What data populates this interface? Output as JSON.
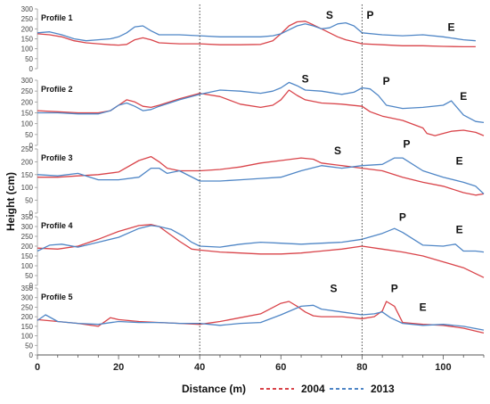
{
  "chart_data": {
    "type": "line",
    "xlabel": "Distance (m)",
    "ylabel": "Height (cm)",
    "xlim": [
      0,
      110
    ],
    "xticks": [
      0,
      20,
      40,
      60,
      80,
      100
    ],
    "vlines": [
      40,
      80
    ],
    "grid": false,
    "legend_placement": "bottom",
    "series_names": [
      "2004",
      "2013"
    ],
    "colors": {
      "2004": "#d9444a",
      "2013": "#4f86c6"
    },
    "panels": [
      {
        "label": "Profile 1",
        "ylim": [
          0,
          300
        ],
        "yticks": [
          0,
          50,
          100,
          150,
          200,
          250,
          300
        ],
        "series": [
          {
            "name": "2004",
            "x": [
              0,
              3,
              6,
              9,
              12,
              15,
              18,
              20,
              22,
              24,
              26,
              28,
              30,
              35,
              40,
              45,
              50,
              55,
              58,
              60,
              62,
              64,
              66,
              68,
              70,
              72,
              74,
              76,
              78,
              80,
              85,
              90,
              95,
              100,
              105,
              108
            ],
            "values": [
              175,
              170,
              160,
              140,
              130,
              125,
              120,
              118,
              122,
              145,
              155,
              145,
              130,
              125,
              125,
              120,
              120,
              122,
              140,
              175,
              215,
              235,
              238,
              220,
              200,
              180,
              160,
              145,
              135,
              125,
              120,
              115,
              115,
              112,
              110,
              110
            ]
          },
          {
            "name": "2013",
            "x": [
              0,
              3,
              6,
              9,
              12,
              15,
              18,
              20,
              22,
              24,
              26,
              28,
              30,
              35,
              40,
              45,
              50,
              55,
              58,
              60,
              62,
              64,
              66,
              68,
              70,
              72,
              74,
              76,
              78,
              80,
              85,
              90,
              95,
              100,
              105,
              108
            ],
            "values": [
              180,
              185,
              170,
              150,
              140,
              145,
              150,
              160,
              180,
              210,
              215,
              190,
              170,
              170,
              165,
              160,
              160,
              160,
              165,
              175,
              195,
              215,
              225,
              215,
              200,
              205,
              225,
              230,
              215,
              180,
              170,
              165,
              170,
              160,
              145,
              140
            ]
          }
        ],
        "annotations": [
          {
            "text": "S",
            "x": 72,
            "y": 250
          },
          {
            "text": "P",
            "x": 82,
            "y": 250
          },
          {
            "text": "E",
            "x": 102,
            "y": 190
          }
        ]
      },
      {
        "label": "Profile 2",
        "ylim": [
          0,
          300
        ],
        "yticks": [
          0,
          50,
          100,
          150,
          200,
          250,
          300
        ],
        "series": [
          {
            "name": "2004",
            "x": [
              0,
              5,
              10,
              15,
              18,
              20,
              22,
              24,
              26,
              28,
              30,
              35,
              40,
              45,
              50,
              55,
              58,
              60,
              62,
              64,
              66,
              70,
              75,
              80,
              82,
              85,
              90,
              95,
              96,
              98,
              100,
              102,
              105,
              108,
              110
            ],
            "values": [
              160,
              155,
              150,
              150,
              160,
              185,
              210,
              200,
              180,
              175,
              185,
              215,
              240,
              225,
              190,
              175,
              185,
              210,
              255,
              230,
              210,
              195,
              190,
              180,
              155,
              135,
              115,
              80,
              55,
              45,
              55,
              65,
              70,
              60,
              45
            ]
          },
          {
            "name": "2013",
            "x": [
              0,
              5,
              10,
              15,
              18,
              20,
              22,
              24,
              26,
              28,
              30,
              35,
              40,
              45,
              50,
              55,
              58,
              60,
              62,
              64,
              66,
              70,
              75,
              78,
              80,
              82,
              84,
              86,
              90,
              95,
              100,
              102,
              105,
              108,
              110
            ],
            "values": [
              150,
              150,
              145,
              145,
              160,
              185,
              195,
              180,
              160,
              165,
              180,
              210,
              235,
              255,
              250,
              240,
              250,
              265,
              290,
              275,
              255,
              250,
              235,
              245,
              265,
              260,
              230,
              185,
              170,
              175,
              185,
              205,
              140,
              110,
              105
            ]
          }
        ],
        "annotations": [
          {
            "text": "S",
            "x": 66,
            "y": 290
          },
          {
            "text": "P",
            "x": 86,
            "y": 280
          },
          {
            "text": "E",
            "x": 105,
            "y": 210
          }
        ]
      },
      {
        "label": "Profile 3",
        "ylim": [
          0,
          250
        ],
        "yticks": [
          0,
          50,
          100,
          150,
          200,
          250
        ],
        "series": [
          {
            "name": "2004",
            "x": [
              0,
              5,
              10,
              15,
              20,
              25,
              28,
              30,
              32,
              35,
              40,
              45,
              50,
              55,
              60,
              65,
              68,
              70,
              75,
              80,
              85,
              90,
              95,
              100,
              105,
              108,
              110
            ],
            "values": [
              140,
              140,
              145,
              150,
              160,
              205,
              220,
              200,
              175,
              165,
              165,
              170,
              180,
              195,
              205,
              215,
              210,
              195,
              185,
              175,
              165,
              140,
              120,
              105,
              80,
              70,
              75
            ]
          },
          {
            "name": "2013",
            "x": [
              0,
              5,
              10,
              15,
              20,
              25,
              28,
              30,
              32,
              35,
              40,
              45,
              50,
              55,
              60,
              65,
              70,
              75,
              80,
              85,
              88,
              90,
              95,
              100,
              105,
              108,
              110
            ],
            "values": [
              150,
              145,
              155,
              130,
              130,
              140,
              175,
              175,
              155,
              165,
              125,
              125,
              130,
              135,
              140,
              165,
              185,
              175,
              185,
              190,
              215,
              215,
              165,
              140,
              120,
              105,
              75
            ]
          }
        ],
        "annotations": [
          {
            "text": "S",
            "x": 74,
            "y": 230
          },
          {
            "text": "P",
            "x": 91,
            "y": 255
          },
          {
            "text": "E",
            "x": 104,
            "y": 190
          }
        ]
      },
      {
        "label": "Profile 4",
        "ylim": [
          0,
          350
        ],
        "yticks": [
          0,
          50,
          100,
          150,
          200,
          250,
          300,
          350
        ],
        "series": [
          {
            "name": "2004",
            "x": [
              0,
              5,
              10,
              15,
              20,
              25,
              28,
              30,
              32,
              35,
              38,
              40,
              45,
              50,
              55,
              60,
              65,
              70,
              75,
              80,
              85,
              90,
              95,
              100,
              105,
              108,
              110
            ],
            "values": [
              190,
              185,
              200,
              235,
              275,
              305,
              310,
              300,
              270,
              225,
              185,
              180,
              170,
              165,
              160,
              160,
              165,
              175,
              185,
              200,
              185,
              170,
              150,
              120,
              90,
              60,
              40
            ]
          },
          {
            "name": "2013",
            "x": [
              0,
              3,
              6,
              10,
              15,
              20,
              25,
              28,
              30,
              33,
              36,
              38,
              40,
              45,
              50,
              55,
              60,
              65,
              70,
              75,
              80,
              85,
              88,
              90,
              95,
              100,
              103,
              105,
              108,
              110
            ],
            "values": [
              175,
              205,
              210,
              195,
              220,
              245,
              290,
              305,
              300,
              285,
              250,
              220,
              200,
              195,
              210,
              220,
              215,
              210,
              215,
              220,
              235,
              265,
              290,
              270,
              205,
              200,
              210,
              175,
              175,
              170
            ]
          }
        ],
        "annotations": [
          {
            "text": "P",
            "x": 90,
            "y": 330
          },
          {
            "text": "E",
            "x": 104,
            "y": 265
          }
        ]
      },
      {
        "label": "Profile 5",
        "ylim": [
          0,
          350
        ],
        "yticks": [
          0,
          50,
          100,
          150,
          200,
          250,
          300,
          350
        ],
        "series": [
          {
            "name": "2004",
            "x": [
              0,
              5,
              10,
              15,
              18,
              20,
              25,
              30,
              35,
              40,
              45,
              50,
              55,
              60,
              62,
              64,
              66,
              68,
              70,
              75,
              80,
              83,
              85,
              86,
              88,
              90,
              95,
              100,
              105,
              110
            ],
            "values": [
              185,
              175,
              165,
              150,
              195,
              185,
              175,
              170,
              165,
              160,
              175,
              195,
              215,
              270,
              280,
              255,
              225,
              205,
              200,
              200,
              190,
              200,
              230,
              280,
              255,
              170,
              160,
              155,
              140,
              115
            ]
          },
          {
            "name": "2013",
            "x": [
              0,
              2,
              5,
              10,
              15,
              20,
              25,
              30,
              35,
              40,
              45,
              50,
              55,
              60,
              65,
              68,
              70,
              75,
              80,
              83,
              85,
              87,
              90,
              95,
              100,
              105,
              110
            ],
            "values": [
              180,
              210,
              175,
              165,
              160,
              175,
              170,
              170,
              165,
              165,
              155,
              165,
              170,
              210,
              255,
              260,
              240,
              225,
              210,
              215,
              225,
              195,
              165,
              155,
              160,
              150,
              130
            ]
          }
        ],
        "annotations": [
          {
            "text": "S",
            "x": 73,
            "y": 330
          },
          {
            "text": "P",
            "x": 88,
            "y": 330
          },
          {
            "text": "E",
            "x": 95,
            "y": 230
          }
        ]
      }
    ]
  }
}
